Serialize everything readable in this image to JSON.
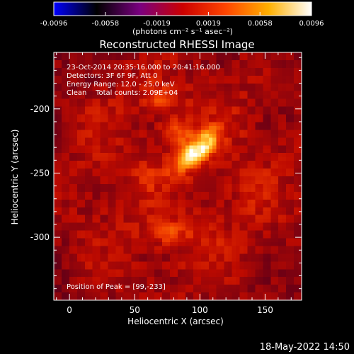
{
  "colorbar": {
    "ticks": [
      "-0.0096",
      "-0.0058",
      "-0.0019",
      "0.0019",
      "0.0058",
      "0.0096"
    ],
    "unit_label": "(photons cm⁻² s⁻¹ asec⁻²)",
    "colors": [
      "#0000ff",
      "#000000",
      "#7a0080",
      "#cc0000",
      "#ff4500",
      "#ffb000",
      "#ffffff"
    ]
  },
  "chart_data": {
    "type": "heatmap",
    "title": "Reconstructed RHESSI Image",
    "xlabel": "Heliocentric X (arcsec)",
    "ylabel": "Heliocentric Y (arcsec)",
    "xlim": [
      -12,
      178
    ],
    "ylim": [
      -349,
      -156
    ],
    "xticks": [
      0,
      50,
      100,
      150
    ],
    "yticks": [
      -200,
      -250,
      -300
    ],
    "zlim": [
      -0.0096,
      0.0096
    ],
    "peak": {
      "x": 99,
      "y": -233
    },
    "sources": [
      {
        "x": 97,
        "y": -233,
        "amp": 1.0
      },
      {
        "x": 82,
        "y": -217,
        "amp": 0.75
      },
      {
        "x": 68,
        "y": -192,
        "amp": 0.6
      },
      {
        "x": 75,
        "y": -296,
        "amp": 0.55
      },
      {
        "x": 102,
        "y": -298,
        "amp": 0.35
      },
      {
        "x": 60,
        "y": -250,
        "amp": 0.3
      },
      {
        "x": 140,
        "y": -265,
        "amp": 0.3
      }
    ],
    "annotations": [
      "23-Oct-2014 20:35:16.000 to 20:41:16.000",
      "Detectors: 3F 6F 9F, Att 0",
      "Energy Range: 12.0 - 25.0 keV",
      "Clean    Total counts: 2.09E+04",
      "Position of Peak = [99,-233]"
    ]
  },
  "footer": {
    "timestamp": "18-May-2022 14:50"
  }
}
